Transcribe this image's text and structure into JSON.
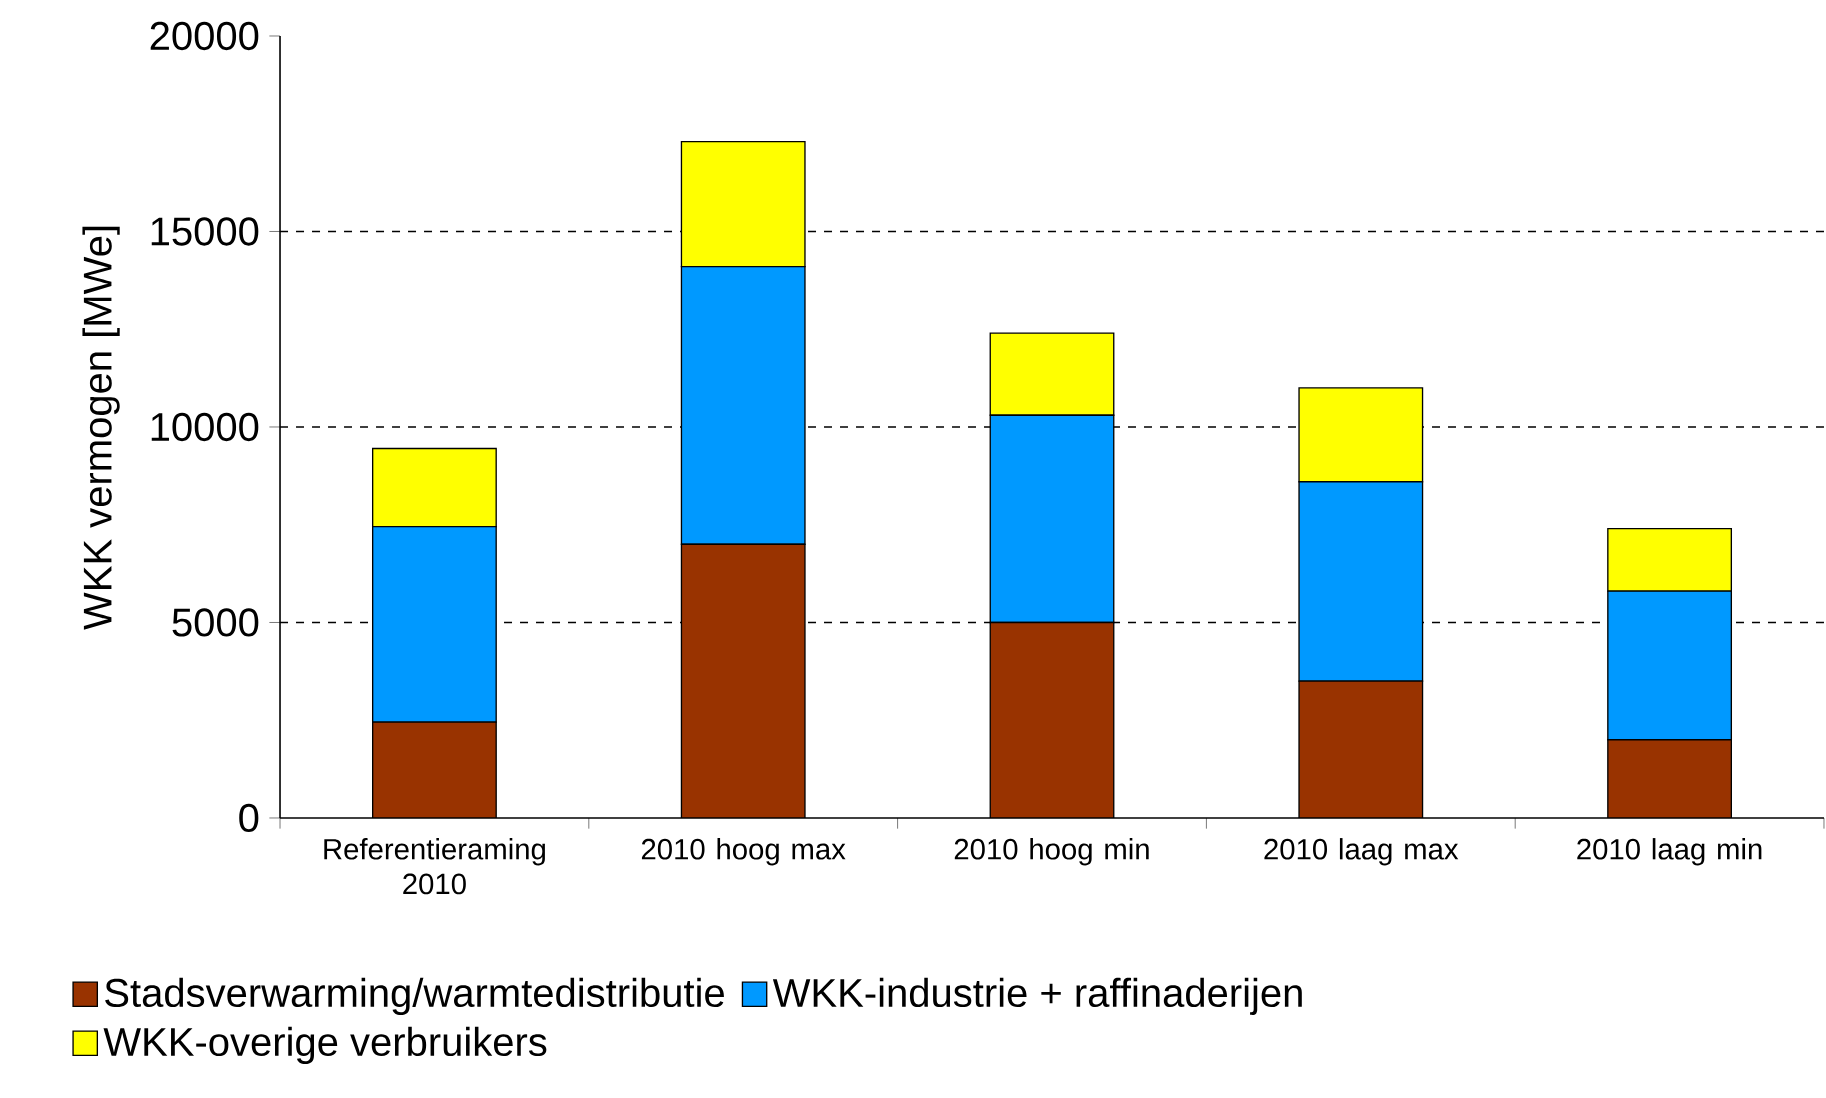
{
  "chart_data": {
    "type": "bar",
    "stacked": true,
    "ylabel": "WKK vermogen [MWe]",
    "categories": [
      "Referentieraming 2010",
      "2010 hoog max",
      "2010 hoog min",
      "2010 laag max",
      "2010 laag min"
    ],
    "series": [
      {
        "name": "Stadsverwarming/warmtedistributie",
        "color": "#993300",
        "values": [
          2450,
          7000,
          5000,
          3500,
          2000
        ]
      },
      {
        "name": "WKK-industrie + raffinaderijen",
        "color": "#0099ff",
        "values": [
          5000,
          7100,
          5300,
          5100,
          3800
        ]
      },
      {
        "name": "WKK-overige verbruikers",
        "color": "#ffff00",
        "values": [
          2000,
          3200,
          2100,
          2400,
          1600
        ]
      }
    ],
    "ylim": [
      0,
      20000
    ],
    "yticks": [
      0,
      5000,
      10000,
      15000,
      20000
    ],
    "grid": "y",
    "legend": "bottom"
  }
}
